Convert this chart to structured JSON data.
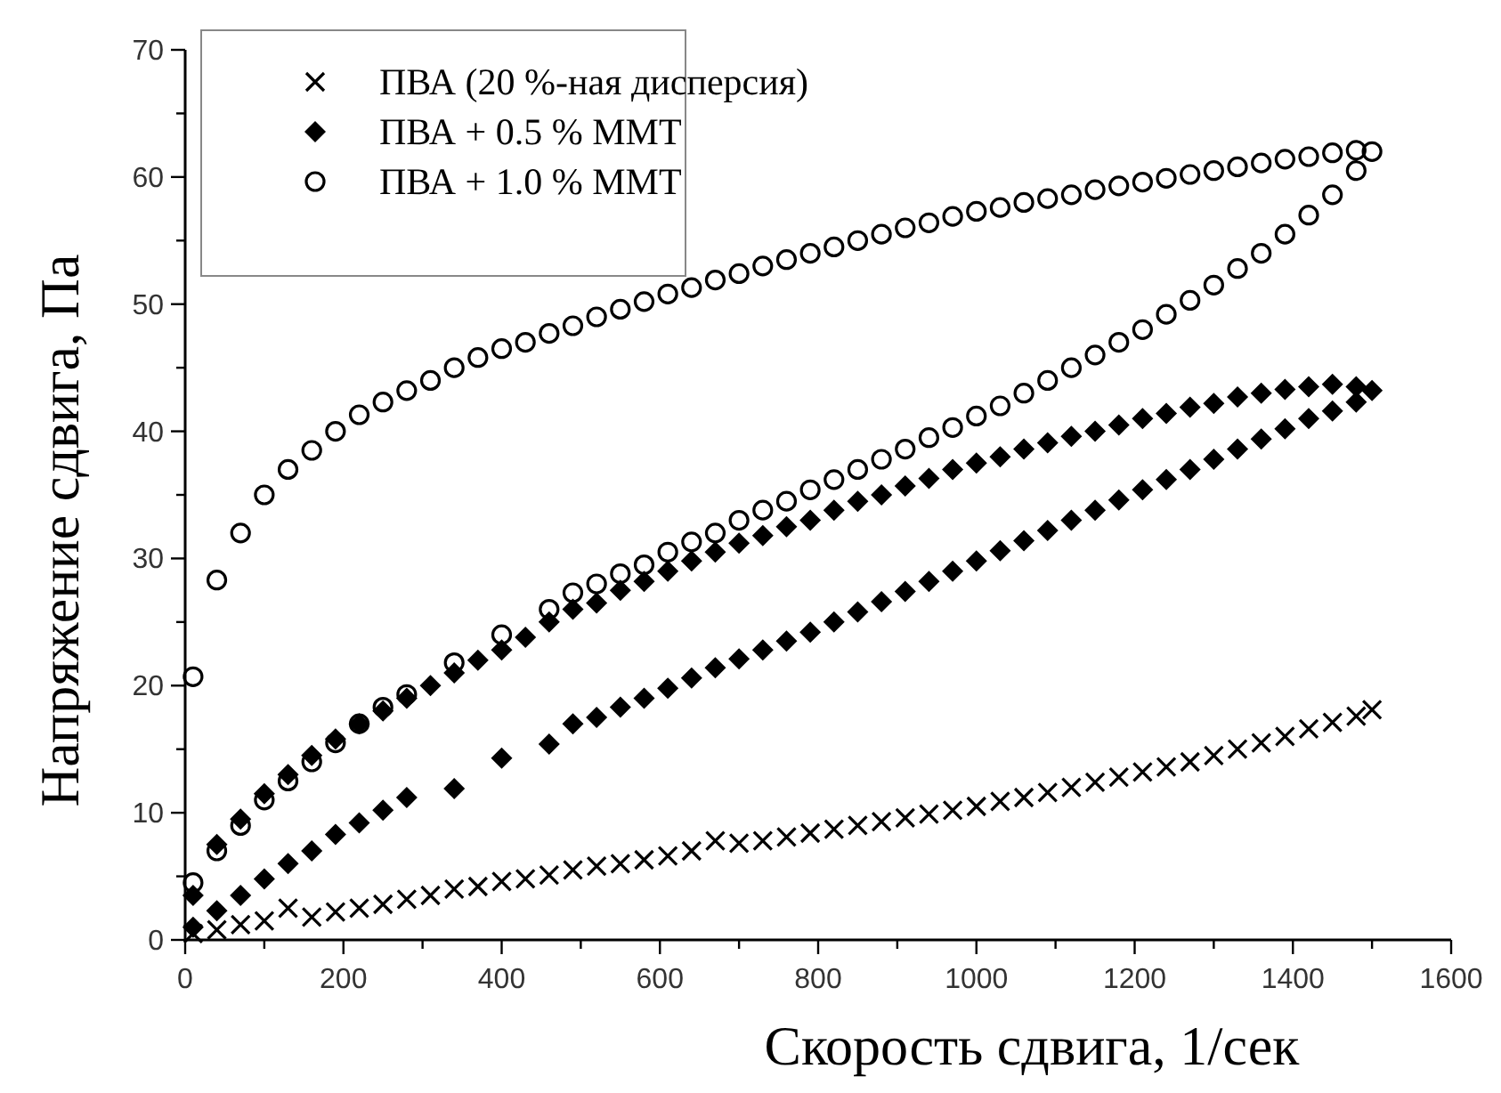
{
  "chart_data": {
    "type": "scatter",
    "xlabel": "Скорость сдвига, 1/сек",
    "ylabel": "Напряжение сдвига, Па",
    "xlim": [
      0,
      1600
    ],
    "ylim": [
      0,
      70
    ],
    "xticks": [
      0,
      {
        "value": 100,
        "label": null
      },
      200,
      {
        "value": 300,
        "label": null
      },
      400,
      {
        "value": 500,
        "label": null
      },
      600,
      {
        "value": 700,
        "label": null
      },
      800,
      {
        "value": 900,
        "label": null
      },
      1000,
      {
        "value": 1100,
        "label": null
      },
      1200,
      {
        "value": 1300,
        "label": null
      },
      1400,
      {
        "value": 1500,
        "label": null
      },
      1600
    ],
    "yticks": [
      0,
      {
        "value": 5,
        "label": null
      },
      10,
      {
        "value": 15,
        "label": null
      },
      20,
      {
        "value": 25,
        "label": null
      },
      30,
      {
        "value": 35,
        "label": null
      },
      40,
      {
        "value": 45,
        "label": null
      },
      50,
      {
        "value": 55,
        "label": null
      },
      60,
      {
        "value": 65,
        "label": null
      },
      70
    ],
    "grid": false,
    "legend": "top left",
    "series": [
      {
        "name": "ПВА (20 %-ная дисперсия)",
        "color": "#000000",
        "marker": "cross",
        "x": [
          10,
          40,
          70,
          100,
          130,
          160,
          190,
          220,
          250,
          280,
          310,
          340,
          370,
          400,
          430,
          460,
          490,
          520,
          550,
          580,
          610,
          640,
          670,
          700,
          730,
          760,
          790,
          820,
          850,
          880,
          910,
          940,
          970,
          1000,
          1030,
          1060,
          1090,
          1120,
          1150,
          1180,
          1210,
          1240,
          1270,
          1300,
          1330,
          1360,
          1390,
          1420,
          1450,
          1480,
          1500
        ],
        "values": [
          0.5,
          0.8,
          1.2,
          1.5,
          2.5,
          1.8,
          2.2,
          2.5,
          2.8,
          3.2,
          3.5,
          4,
          4.2,
          4.6,
          4.8,
          5.1,
          5.5,
          5.8,
          6,
          6.3,
          6.6,
          7,
          7.8,
          7.6,
          7.8,
          8.1,
          8.4,
          8.7,
          9,
          9.3,
          9.6,
          9.9,
          10.2,
          10.5,
          10.9,
          11.2,
          11.6,
          12,
          12.4,
          12.8,
          13.2,
          13.6,
          14,
          14.5,
          15,
          15.5,
          16,
          16.6,
          17.1,
          17.6,
          18.1
        ]
      },
      {
        "name": "ПВА + 0.5 % ММТ",
        "color": "#000000",
        "marker": "diamond",
        "x": [
          10,
          40,
          70,
          100,
          130,
          160,
          190,
          220,
          250,
          280,
          310,
          340,
          370,
          400,
          430,
          460,
          490,
          520,
          550,
          580,
          610,
          640,
          670,
          700,
          730,
          760,
          790,
          820,
          850,
          880,
          910,
          940,
          970,
          1000,
          1030,
          1060,
          1090,
          1120,
          1150,
          1180,
          1210,
          1240,
          1270,
          1300,
          1330,
          1360,
          1390,
          1420,
          1450,
          1480,
          1500,
          10,
          40,
          70,
          100,
          130,
          160,
          190,
          220,
          250,
          280,
          340,
          400,
          460,
          490,
          520,
          550,
          580,
          610,
          640,
          670,
          700,
          730,
          760,
          790,
          820,
          850,
          880,
          910,
          940,
          970,
          1000,
          1030,
          1060,
          1090,
          1120,
          1150,
          1180,
          1210,
          1240,
          1270,
          1300,
          1330,
          1360,
          1390,
          1420,
          1450,
          1480
        ],
        "values": [
          3.5,
          7.5,
          9.5,
          11.5,
          13,
          14.5,
          15.8,
          17,
          18,
          19,
          20,
          21,
          22,
          22.8,
          23.8,
          25,
          26,
          26.5,
          27.5,
          28.2,
          29,
          29.8,
          30.5,
          31.2,
          31.8,
          32.5,
          33,
          33.8,
          34.5,
          35,
          35.7,
          36.3,
          37,
          37.5,
          38,
          38.6,
          39.1,
          39.6,
          40,
          40.5,
          41,
          41.4,
          41.9,
          42.2,
          42.7,
          43,
          43.3,
          43.5,
          43.7,
          43.5,
          43.2,
          1,
          2.3,
          3.5,
          4.8,
          6,
          7,
          8.3,
          9.2,
          10.2,
          11.2,
          11.9,
          14.3,
          15.4,
          17,
          17.5,
          18.3,
          19,
          19.8,
          20.6,
          21.4,
          22.1,
          22.8,
          23.5,
          24.2,
          25,
          25.8,
          26.6,
          27.4,
          28.2,
          29,
          29.8,
          30.6,
          31.4,
          32.2,
          33,
          33.8,
          34.6,
          35.4,
          36.2,
          37,
          37.8,
          38.6,
          39.4,
          40.2,
          41,
          41.6,
          42.3
        ]
      },
      {
        "name": "ПВА + 1.0 % ММТ",
        "color": "#000000",
        "marker": "circle",
        "x": [
          10,
          40,
          70,
          100,
          130,
          160,
          190,
          220,
          250,
          280,
          310,
          340,
          370,
          400,
          430,
          460,
          490,
          520,
          550,
          580,
          610,
          640,
          670,
          700,
          730,
          760,
          790,
          820,
          850,
          880,
          910,
          940,
          970,
          1000,
          1030,
          1060,
          1090,
          1120,
          1150,
          1180,
          1210,
          1240,
          1270,
          1300,
          1330,
          1360,
          1390,
          1420,
          1450,
          1480,
          1500,
          10,
          40,
          70,
          100,
          130,
          160,
          190,
          220,
          250,
          280,
          340,
          400,
          460,
          490,
          520,
          550,
          580,
          610,
          640,
          670,
          700,
          730,
          760,
          790,
          820,
          850,
          880,
          910,
          940,
          970,
          1000,
          1030,
          1060,
          1090,
          1120,
          1150,
          1180,
          1210,
          1240,
          1270,
          1300,
          1330,
          1360,
          1390,
          1420,
          1450,
          1480
        ],
        "values": [
          20.7,
          28.3,
          32,
          35,
          37,
          38.5,
          40,
          41.3,
          42.3,
          43.2,
          44,
          45,
          45.8,
          46.5,
          47,
          47.7,
          48.3,
          49,
          49.6,
          50.2,
          50.8,
          51.3,
          51.9,
          52.4,
          53,
          53.5,
          54,
          54.5,
          55,
          55.5,
          56,
          56.4,
          56.9,
          57.3,
          57.6,
          58,
          58.3,
          58.6,
          59,
          59.3,
          59.6,
          59.9,
          60.2,
          60.5,
          60.8,
          61.1,
          61.4,
          61.6,
          61.9,
          62.1,
          62,
          4.5,
          7,
          9,
          11,
          12.5,
          14,
          15.5,
          17,
          18.3,
          19.3,
          21.8,
          24,
          26,
          27.3,
          28,
          28.8,
          29.5,
          30.5,
          31.3,
          32,
          33,
          33.8,
          34.5,
          35.4,
          36.2,
          37,
          37.8,
          38.6,
          39.5,
          40.3,
          41.2,
          42,
          43,
          44,
          45,
          46,
          47,
          48,
          49.2,
          50.3,
          51.5,
          52.8,
          54,
          55.5,
          57,
          58.6,
          60.5
        ]
      }
    ]
  }
}
